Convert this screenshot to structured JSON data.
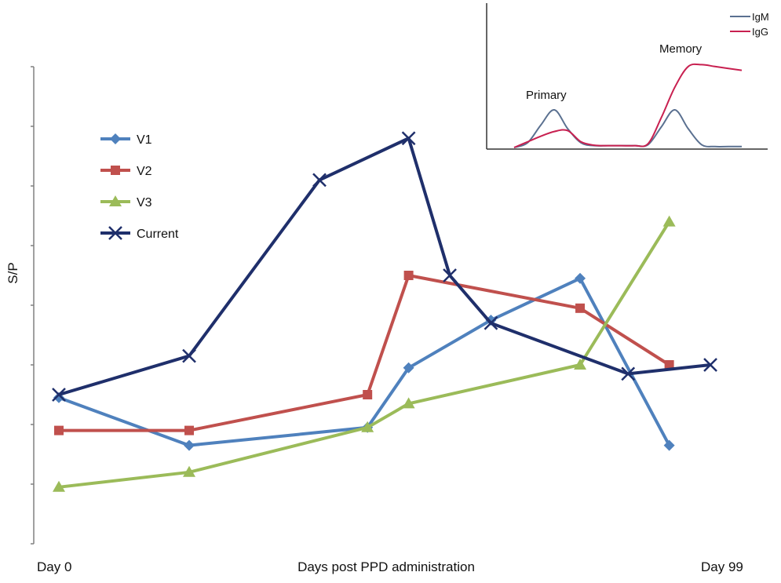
{
  "chart_data": [
    {
      "type": "line",
      "xlabel": "Days post PPD administration",
      "ylabel": "S/P",
      "x_start_label": "Day 0",
      "x_end_label": "Day 99",
      "xlim": [
        0,
        99
      ],
      "ylim": [
        0,
        8
      ],
      "y_ticks_labeled": false,
      "legend_position": "left",
      "series": [
        {
          "name": "V1",
          "color": "#4F81BD",
          "marker": "diamond",
          "points": [
            [
              0,
              2.45
            ],
            [
              19,
              1.65
            ],
            [
              45,
              1.95
            ],
            [
              51,
              2.95
            ],
            [
              63,
              3.75
            ],
            [
              76,
              4.45
            ],
            [
              89,
              1.65
            ]
          ]
        },
        {
          "name": "V2",
          "color": "#C0504D",
          "marker": "square",
          "points": [
            [
              0,
              1.9
            ],
            [
              19,
              1.9
            ],
            [
              45,
              2.5
            ],
            [
              51,
              4.5
            ],
            [
              76,
              3.95
            ],
            [
              89,
              3.0
            ]
          ]
        },
        {
          "name": "V3",
          "color": "#9BBB59",
          "marker": "triangle",
          "points": [
            [
              0,
              0.95
            ],
            [
              19,
              1.2
            ],
            [
              45,
              1.95
            ],
            [
              51,
              2.35
            ],
            [
              76,
              3.0
            ],
            [
              89,
              5.4
            ]
          ]
        },
        {
          "name": "Current",
          "color": "#1F2F6B",
          "marker": "x",
          "points": [
            [
              0,
              2.5
            ],
            [
              19,
              3.15
            ],
            [
              38,
              6.1
            ],
            [
              51,
              6.8
            ],
            [
              57,
              4.5
            ],
            [
              63,
              3.7
            ],
            [
              83,
              2.85
            ],
            [
              95,
              3.0
            ]
          ]
        }
      ]
    },
    {
      "type": "line",
      "inset": true,
      "xlabel": "",
      "ylabel": "",
      "annotations": [
        "Primary",
        "Memory"
      ],
      "series": [
        {
          "name": "IgM",
          "color": "#5A7090",
          "values": [
            0,
            0.25,
            1.2,
            2.0,
            1.0,
            0.25,
            0.1,
            0.1,
            0.1,
            0.1,
            0.15,
            1.1,
            2.0,
            1.0,
            0.15,
            0.05,
            0.05,
            0.05
          ]
        },
        {
          "name": "IgG",
          "color": "#C82050",
          "values": [
            0,
            0.3,
            0.6,
            0.85,
            0.9,
            0.3,
            0.12,
            0.1,
            0.1,
            0.1,
            0.2,
            1.6,
            3.2,
            4.3,
            4.4,
            4.3,
            4.2,
            4.1
          ]
        }
      ]
    }
  ]
}
